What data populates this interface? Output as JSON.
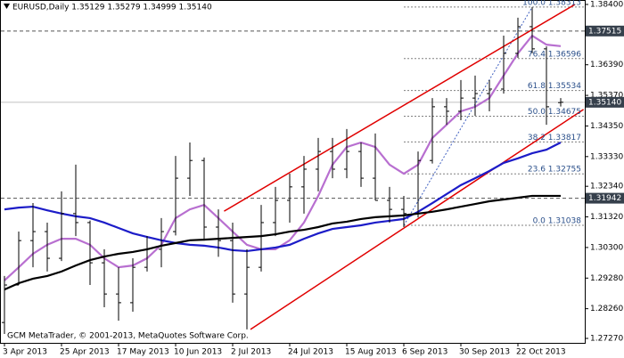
{
  "chart_data": {
    "type": "ohlc",
    "title": "EURUSD,Daily  1.35129 1.35279 1.34999 1.35140",
    "footer": "GCM MetaTrader, © 2001-2013, MetaQuotes Software Corp.",
    "categories": [
      "3 Apr 2013",
      null,
      null,
      null,
      "25 Apr 2013",
      null,
      null,
      null,
      "17 May 2013",
      null,
      null,
      null,
      "10 Jun 2013",
      null,
      null,
      null,
      "2 Jul 2013",
      null,
      null,
      null,
      "24 Jul 2013",
      null,
      null,
      null,
      "15 Aug 2013",
      null,
      null,
      null,
      "6 Sep 2013",
      null,
      null,
      null,
      "30 Sep 2013",
      null,
      null,
      null,
      "22 Oct 2013",
      null,
      null,
      null
    ],
    "open": [
      1.278,
      1.2905,
      1.3053,
      1.3083,
      1.2994,
      1.3143,
      1.3113,
      1.2979,
      1.2875,
      1.2846,
      1.2964,
      1.3024,
      1.3083,
      1.3261,
      1.332,
      1.3098,
      1.3053,
      1.2875,
      1.2964,
      1.3113,
      1.3187,
      1.3232,
      1.3291,
      1.335,
      1.3291,
      1.335,
      1.3261,
      1.3187,
      1.3157,
      1.3143,
      1.332,
      1.3499,
      1.3484,
      1.3528,
      1.3543,
      1.3558,
      1.3677,
      1.3766,
      1.3692,
      1.35129
    ],
    "high": [
      1.2935,
      1.3083,
      1.3178,
      1.3113,
      1.3217,
      1.3306,
      1.312,
      1.3024,
      1.2964,
      1.2994,
      1.3068,
      1.3128,
      1.3335,
      1.338,
      1.333,
      1.3157,
      1.3113,
      1.3024,
      1.3172,
      1.3232,
      1.3276,
      1.3335,
      1.3395,
      1.3395,
      1.3425,
      1.338,
      1.341,
      1.3232,
      1.3202,
      1.335,
      1.3528,
      1.3528,
      1.3588,
      1.3603,
      1.3588,
      1.3736,
      1.3796,
      1.3831,
      1.37,
      1.35279
    ],
    "low": [
      1.2742,
      1.2905,
      1.2964,
      1.295,
      1.2985,
      1.3068,
      1.2905,
      1.2831,
      1.2786,
      1.2816,
      1.295,
      1.2964,
      1.307,
      1.3202,
      1.3053,
      1.2999,
      1.2846,
      1.2757,
      1.295,
      1.3068,
      1.3113,
      1.3143,
      1.3217,
      1.3261,
      1.3261,
      1.3232,
      1.3187,
      1.3113,
      1.3098,
      1.313,
      1.331,
      1.3439,
      1.3454,
      1.3469,
      1.3484,
      1.3543,
      1.3662,
      1.3677,
      1.3439,
      1.34999
    ],
    "close": [
      1.2905,
      1.3053,
      1.3083,
      1.2994,
      1.3143,
      1.3113,
      1.2979,
      1.2875,
      1.2846,
      1.2964,
      1.3024,
      1.3083,
      1.3261,
      1.332,
      1.3098,
      1.3053,
      1.2875,
      1.2964,
      1.3113,
      1.3187,
      1.3232,
      1.3291,
      1.335,
      1.3291,
      1.335,
      1.3261,
      1.3187,
      1.3157,
      1.3143,
      1.332,
      1.3499,
      1.3484,
      1.3528,
      1.3543,
      1.3558,
      1.3677,
      1.3766,
      1.3692,
      1.3499,
      1.3514
    ],
    "bar_color": "#000000",
    "series": [
      {
        "color": "#b86fd0",
        "values": [
          1.292,
          1.2964,
          1.3009,
          1.3039,
          1.3059,
          1.3059,
          1.3039,
          1.2994,
          1.2964,
          1.297,
          1.2994,
          1.3039,
          1.3128,
          1.3157,
          1.3172,
          1.3128,
          1.3083,
          1.3039,
          1.3024,
          1.3024,
          1.3054,
          1.3113,
          1.3202,
          1.3306,
          1.3365,
          1.338,
          1.3365,
          1.3306,
          1.3276,
          1.3306,
          1.3395,
          1.3439,
          1.3484,
          1.3499,
          1.3528,
          1.3603,
          1.3677,
          1.3736,
          1.3706,
          1.3701
        ]
      },
      {
        "color": "#1c1cc8",
        "values": [
          1.3157,
          1.3163,
          1.3166,
          1.3154,
          1.3143,
          1.3134,
          1.3128,
          1.3113,
          1.3095,
          1.3077,
          1.3065,
          1.3054,
          1.3045,
          1.3039,
          1.3036,
          1.303,
          1.3021,
          1.3018,
          1.3024,
          1.303,
          1.3039,
          1.3059,
          1.3077,
          1.3092,
          1.3098,
          1.3104,
          1.3113,
          1.3119,
          1.3125,
          1.3149,
          1.3178,
          1.3208,
          1.3238,
          1.3261,
          1.3285,
          1.3312,
          1.3327,
          1.3344,
          1.3356,
          1.338
        ]
      },
      {
        "color": "#000000",
        "values": [
          1.289,
          1.2911,
          1.2926,
          1.2935,
          1.295,
          1.297,
          1.2988,
          1.3,
          1.3009,
          1.3015,
          1.3024,
          1.3036,
          1.3045,
          1.3054,
          1.3056,
          1.3059,
          1.3062,
          1.3065,
          1.3068,
          1.3074,
          1.3083,
          1.3089,
          1.3098,
          1.311,
          1.3116,
          1.3125,
          1.3131,
          1.3134,
          1.3137,
          1.3143,
          1.3149,
          1.3157,
          1.3166,
          1.3175,
          1.3184,
          1.319,
          1.3196,
          1.3202,
          1.3202,
          1.3202
        ]
      }
    ],
    "channel": {
      "color": "#e00000",
      "lines": [
        {
          "x": [
            15.4,
            40
          ],
          "values": [
            1.3151,
            1.384
          ]
        },
        {
          "x": [
            17.25,
            40.6
          ],
          "values": [
            1.2757,
            1.349
          ]
        }
      ]
    },
    "fibo": [
      {
        "value": 1.38313,
        "label": "100.0 1.38313"
      },
      {
        "value": 1.36596,
        "label": "76.4 1.36596"
      },
      {
        "value": 1.35534,
        "label": "61.8 1.35534"
      },
      {
        "value": 1.34675,
        "label": "50.0 1.34675"
      },
      {
        "value": 1.33817,
        "label": "38.2 1.33817"
      },
      {
        "value": 1.32755,
        "label": "23.6 1.32755"
      },
      {
        "value": 1.31038,
        "label": "0.0 1.31038"
      }
    ],
    "levels": [
      {
        "value": 1.37515,
        "label": "1.37515",
        "style": "dashed"
      },
      {
        "value": 1.3514,
        "label": "1.35140",
        "style": "solid"
      },
      {
        "value": 1.31942,
        "label": "1.31942",
        "style": "dashed"
      }
    ],
    "ylim": [
      1.2727,
      1.384
    ],
    "yticks": [
      {
        "value": 1.384,
        "label": "1.38400"
      },
      {
        "value": 1.3639,
        "label": "1.36390"
      },
      {
        "value": 1.3537,
        "label": "1.35370"
      },
      {
        "value": 1.3435,
        "label": "1.34350"
      },
      {
        "value": 1.3333,
        "label": "1.33330"
      },
      {
        "value": 1.3234,
        "label": "1.32340"
      },
      {
        "value": 1.3132,
        "label": "1.31320"
      },
      {
        "value": 1.303,
        "label": "1.30300"
      },
      {
        "value": 1.2928,
        "label": "1.29280"
      },
      {
        "value": 1.2826,
        "label": "1.28260"
      },
      {
        "value": 1.2727,
        "label": "1.27270"
      }
    ]
  }
}
